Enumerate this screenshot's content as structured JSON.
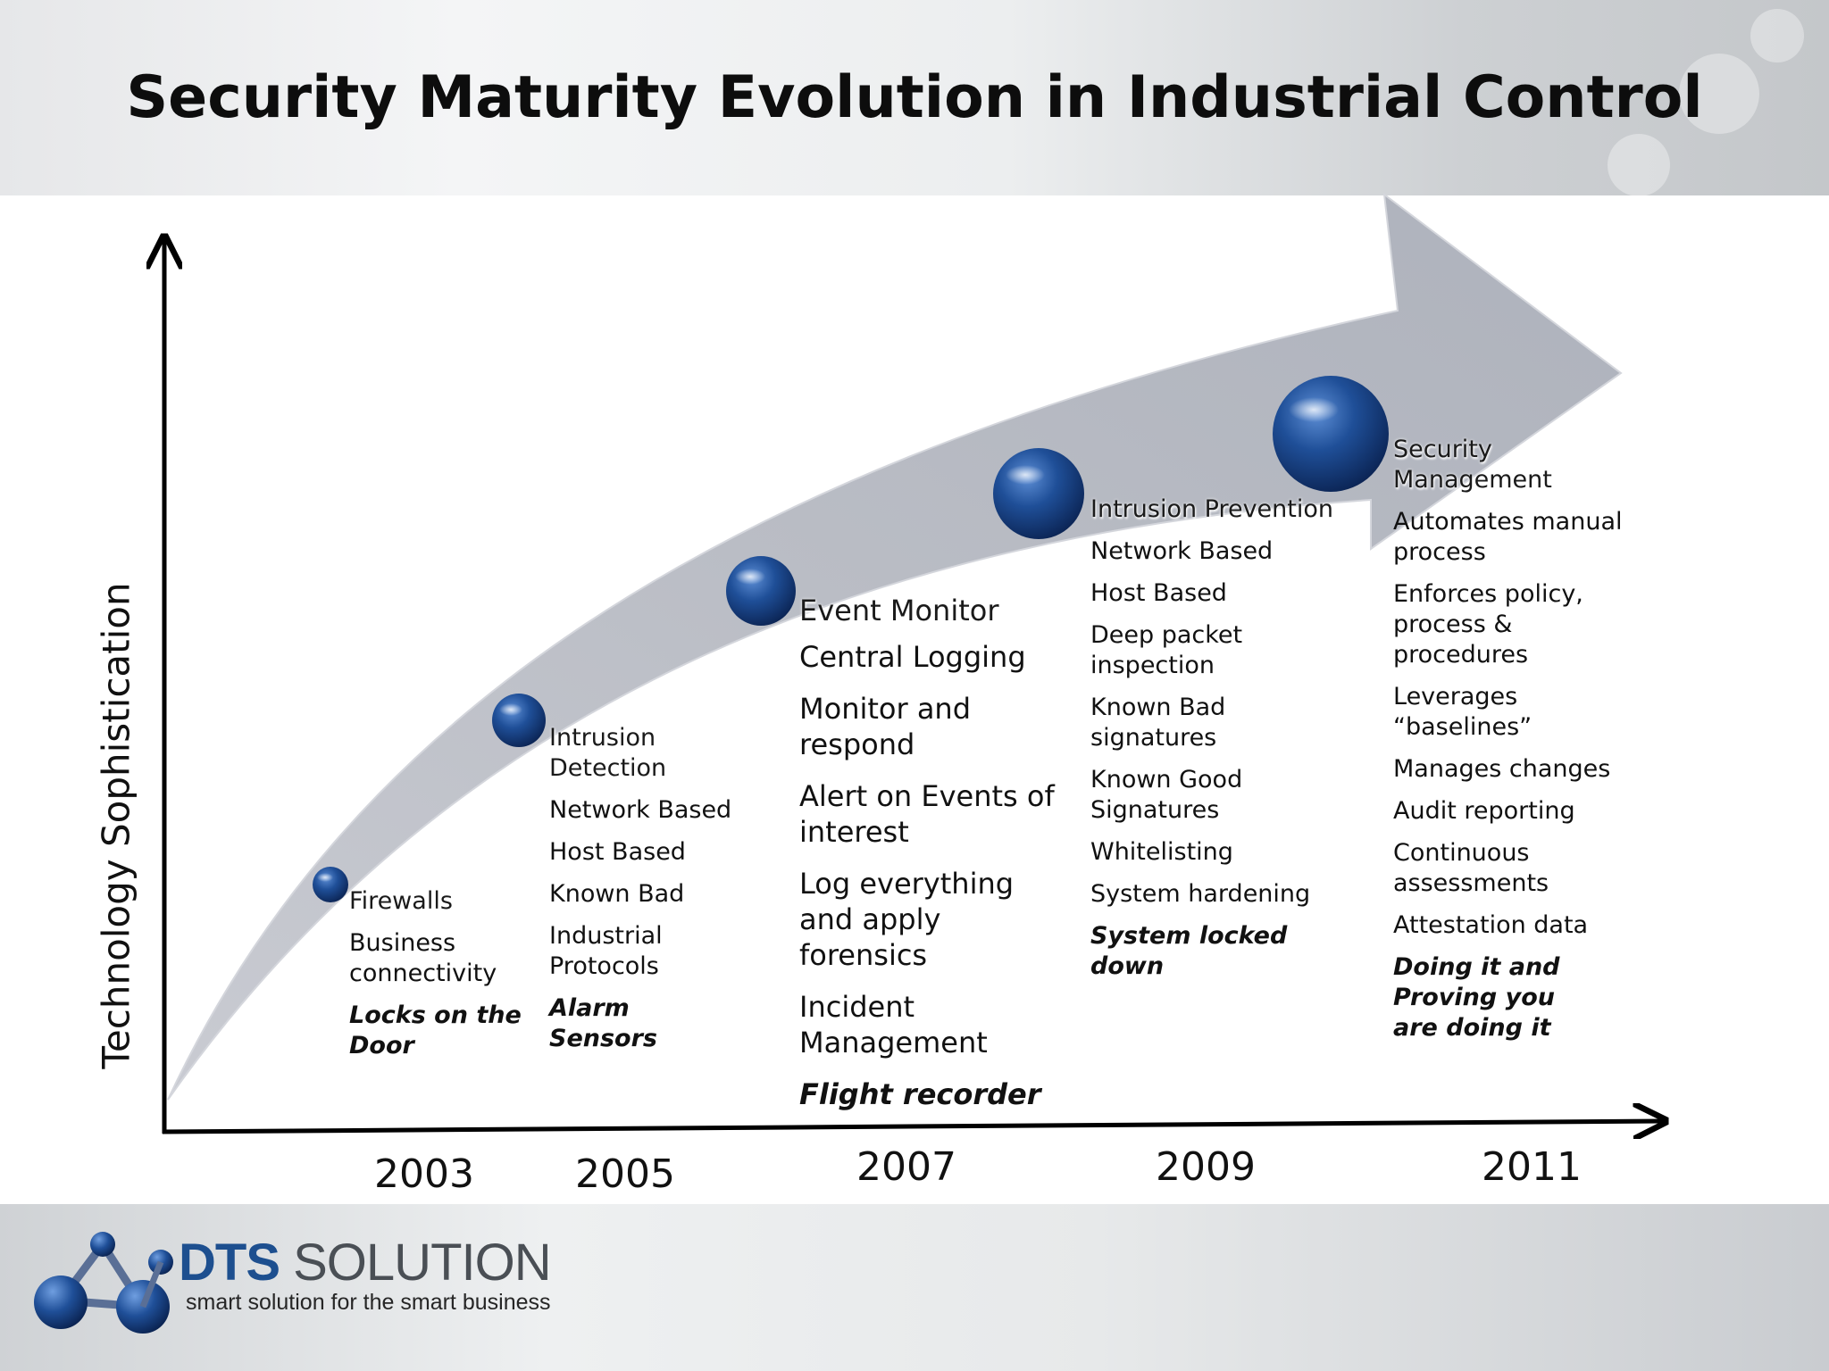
{
  "title": "Security Maturity Evolution in Industrial Control",
  "y_axis_label": "Technology Sophistication",
  "years": [
    "2003",
    "2005",
    "2007",
    "2009",
    "2011"
  ],
  "stages": [
    {
      "title": "Firewalls",
      "items": [
        "Business connectivity"
      ],
      "note": "Locks on the Door"
    },
    {
      "title": "Intrusion Detection",
      "items": [
        "Network Based",
        "Host Based",
        "Known Bad",
        "Industrial Protocols"
      ],
      "note": "Alarm Sensors"
    },
    {
      "title": "Event Monitor",
      "items": [
        "Central Logging",
        "Monitor and respond",
        "Alert on Events of interest",
        "Log everything and apply forensics",
        "Incident Management"
      ],
      "note": "Flight recorder"
    },
    {
      "title": "Intrusion Prevention",
      "items": [
        "Network Based",
        "Host Based",
        "Deep packet inspection",
        "Known Bad signatures",
        "Known Good Signatures",
        "Whitelisting",
        "System hardening"
      ],
      "note": "System locked down"
    },
    {
      "title": "Security Management",
      "items": [
        "Automates manual process",
        "Enforces policy, process & procedures",
        "Leverages “baselines”",
        "Manages changes",
        "Audit reporting",
        "Continuous assessments",
        "Attestation data"
      ],
      "note": "Doing it and Proving you are doing it"
    }
  ],
  "brand": {
    "name_part1": "DTS",
    "name_part2": "SOLUTION",
    "tagline": "smart solution for the smart business"
  },
  "colors": {
    "arrow": "#b9bcc4",
    "bubble": "#1e4f96",
    "brand_blue": "#1d4f8f"
  }
}
